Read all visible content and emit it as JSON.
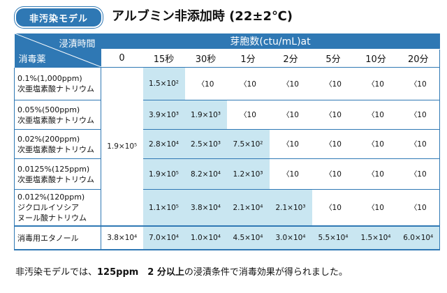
{
  "badge": "非汚染モデル",
  "title": "アルブミン非添加時 (22±2℃)",
  "table": {
    "corner_top": "浸漬時間",
    "corner_bottom": "消毒薬",
    "group_header": "芽胞数(ctu/mL)at",
    "columns": [
      "0",
      "15秒",
      "30秒",
      "1分",
      "2分",
      "5分",
      "10分",
      "20分"
    ],
    "control_value": "1.9×10⁵",
    "rows": [
      {
        "label": [
          "0.1%(1,000ppm)",
          "次亜塩素酸ナトリウム"
        ],
        "cells": [
          "1.5×10²",
          "〈10",
          "〈10",
          "〈10",
          "〈10",
          "〈10",
          "〈10"
        ],
        "highlight": [
          true,
          false,
          false,
          false,
          false,
          false,
          false
        ]
      },
      {
        "label": [
          "0.05%(500ppm)",
          "次亜塩素酸ナトリウム"
        ],
        "cells": [
          "3.9×10³",
          "1.9×10³",
          "〈10",
          "〈10",
          "〈10",
          "〈10",
          "〈10"
        ],
        "highlight": [
          true,
          true,
          false,
          false,
          false,
          false,
          false
        ]
      },
      {
        "label": [
          "0.02%(200ppm)",
          "次亜塩素酸ナトリウム"
        ],
        "cells": [
          "2.8×10⁴",
          "2.5×10³",
          "7.5×10²",
          "〈10",
          "〈10",
          "〈10",
          "〈10"
        ],
        "highlight": [
          true,
          true,
          true,
          false,
          false,
          false,
          false
        ]
      },
      {
        "label": [
          "0.0125%(125ppm)",
          "次亜塩素酸ナトリウム"
        ],
        "cells": [
          "1.9×10⁵",
          "8.2×10⁴",
          "1.2×10³",
          "〈10",
          "〈10",
          "〈10",
          "〈10"
        ],
        "highlight": [
          true,
          true,
          true,
          false,
          false,
          false,
          false
        ]
      },
      {
        "label": [
          "0.012%(120ppm)",
          "ジクロルイソシア",
          "ヌール酸ナトリウム"
        ],
        "cells": [
          "1.1×10⁵",
          "3.8×10⁴",
          "2.1×10⁴",
          "2.1×10³",
          "〈10",
          "〈10",
          "〈10"
        ],
        "highlight": [
          true,
          true,
          true,
          true,
          false,
          false,
          false
        ]
      }
    ],
    "last_row": {
      "label": "消毒用エタノール",
      "cells": [
        "3.8×10⁴",
        "7.0×10⁴",
        "1.0×10⁴",
        "4.5×10⁴",
        "3.0×10⁴",
        "5.5×10⁴",
        "1.5×10⁴",
        "6.0×10⁴"
      ],
      "highlight": [
        false,
        true,
        true,
        true,
        true,
        true,
        true,
        true
      ]
    }
  },
  "note": {
    "pre": "非汚染モデルでは、",
    "bold": "125ppm　2 分以上",
    "post": "の浸漬条件で消毒効果が得られました。"
  },
  "colors": {
    "header_blue": "#2f78b4",
    "highlight": "#c9e6f1"
  }
}
